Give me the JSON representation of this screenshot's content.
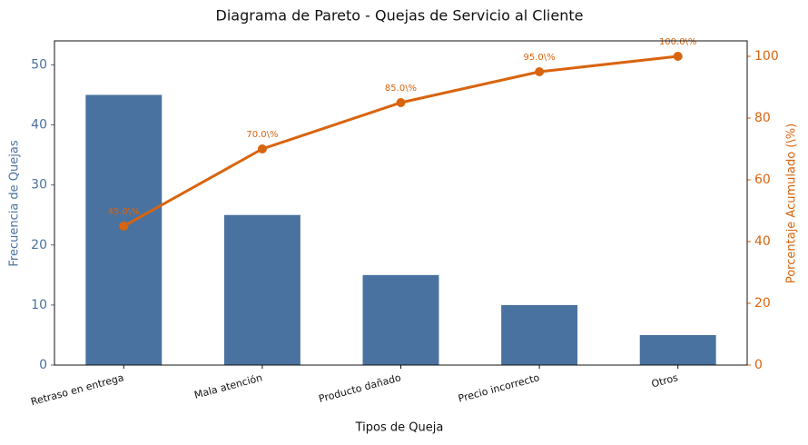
{
  "chart_data": {
    "type": "pareto",
    "title": "Diagrama de Pareto - Quejas de Servicio al Cliente",
    "x_label": "Tipos de Queja",
    "y_label": "Frecuencia de Quejas",
    "y2_label": "Porcentaje Acumulado (\\%)",
    "categories": [
      "Retraso en entrega",
      "Mala atención",
      "Producto dañado",
      "Precio incorrecto",
      "Otros"
    ],
    "series": [
      {
        "name": "Frecuencia",
        "kind": "bar",
        "color": "#4a72a0",
        "values": [
          45,
          25,
          15,
          10,
          5
        ]
      },
      {
        "name": "Porcentaje Acumulado",
        "kind": "line",
        "axis": "y2",
        "color": "#d9640e",
        "values": [
          45,
          70,
          85,
          95,
          100
        ],
        "value_labels": [
          "45.0\\%",
          "70.0\\%",
          "85.0\\%",
          "95.0\\%",
          "100.0\\%"
        ]
      }
    ],
    "ylim": [
      0,
      54
    ],
    "yticks": [
      0,
      10,
      20,
      30,
      40,
      50
    ],
    "y2lim": [
      0,
      105
    ],
    "y2ticks": [
      0,
      20,
      40,
      60,
      80,
      100
    ]
  }
}
